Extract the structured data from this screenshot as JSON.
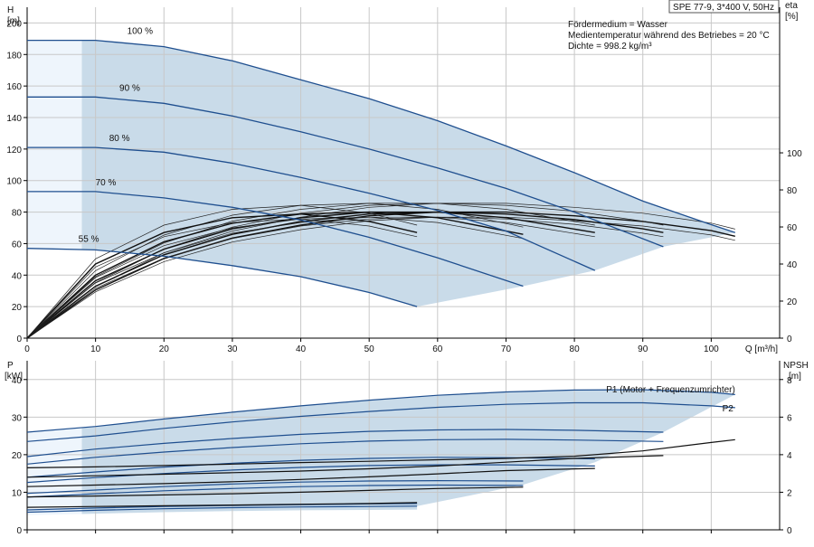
{
  "chart_data": [
    {
      "type": "line",
      "panel": "head-efficiency",
      "title": "SPE 77-9, 3*400 V, 50Hz",
      "info_lines": [
        "Fördermedium = Wasser",
        "Medientemperatur während des Betriebes = 20 °C",
        "Dichte = 998.2 kg/m³"
      ],
      "ylabel": "H",
      "yunit": "[m]",
      "y2label": "eta",
      "y2unit": "[%]",
      "xlabel": "Q [m³/h]",
      "xlim": [
        0,
        110
      ],
      "ylim": [
        0,
        210
      ],
      "y2lim": [
        0,
        100
      ],
      "xticks": [
        "0",
        "10",
        "20",
        "30",
        "40",
        "50",
        "60",
        "70",
        "80",
        "90",
        "100"
      ],
      "yticks": [
        "0",
        "20",
        "40",
        "60",
        "80",
        "100",
        "120",
        "140",
        "160",
        "180",
        "200"
      ],
      "y2ticks": [
        "0",
        "20",
        "40",
        "60",
        "80",
        "100"
      ],
      "grid": true,
      "series": [
        {
          "name": "100 %",
          "x": [
            0,
            10,
            20,
            30,
            40,
            50,
            60,
            70,
            80,
            90,
            100,
            103.5
          ],
          "y": [
            189,
            189,
            185,
            176,
            164,
            152,
            138,
            122,
            105,
            87,
            72,
            67
          ]
        },
        {
          "name": "90 %",
          "x": [
            0,
            10,
            20,
            30,
            40,
            50,
            60,
            70,
            80,
            93
          ],
          "y": [
            153,
            153,
            149,
            141,
            131,
            120,
            108,
            95,
            80,
            58
          ]
        },
        {
          "name": "80 %",
          "x": [
            0,
            10,
            20,
            30,
            40,
            50,
            60,
            70,
            83
          ],
          "y": [
            121,
            121,
            118,
            111,
            102,
            92,
            81,
            68,
            43
          ]
        },
        {
          "name": "70 %",
          "x": [
            0,
            10,
            20,
            30,
            40,
            50,
            60,
            72.5
          ],
          "y": [
            93,
            93,
            89,
            83,
            75,
            64,
            51,
            33
          ]
        },
        {
          "name": "55 %",
          "x": [
            0,
            10,
            20,
            30,
            40,
            50,
            57
          ],
          "y": [
            57,
            56,
            52,
            46,
            39,
            29,
            20
          ]
        }
      ],
      "efficiency_series": [
        {
          "x": [
            0,
            10,
            20,
            30,
            40,
            50,
            60,
            70,
            80,
            90,
            100,
            103.5
          ],
          "y": [
            0,
            26,
            43,
            54,
            61,
            66,
            68,
            68,
            66,
            63,
            58,
            55
          ]
        },
        {
          "x": [
            0,
            10,
            20,
            30,
            40,
            50,
            60,
            70,
            80,
            90,
            93
          ],
          "y": [
            0,
            28,
            45,
            56,
            63,
            67,
            68,
            67,
            64,
            59,
            57
          ]
        },
        {
          "x": [
            0,
            10,
            20,
            30,
            40,
            50,
            60,
            70,
            83
          ],
          "y": [
            0,
            31,
            48,
            59,
            65,
            68,
            68,
            65,
            57
          ]
        },
        {
          "x": [
            0,
            10,
            20,
            30,
            40,
            50,
            60,
            72.5
          ],
          "y": [
            0,
            34,
            52,
            62,
            67,
            68,
            65,
            56
          ]
        },
        {
          "x": [
            0,
            10,
            20,
            30,
            40,
            50,
            57
          ],
          "y": [
            0,
            40,
            57,
            65,
            67,
            63,
            57
          ]
        }
      ]
    },
    {
      "type": "line",
      "panel": "power-npsh",
      "ylabel": "P",
      "yunit": "[kW]",
      "y2label": "NPSH",
      "y2unit": "[m]",
      "xlim": [
        0,
        110
      ],
      "ylim": [
        0,
        45
      ],
      "y2lim": [
        0,
        9
      ],
      "yticks": [
        "0",
        "10",
        "20",
        "30",
        "40"
      ],
      "y2ticks": [
        "0",
        "2",
        "4",
        "6",
        "8"
      ],
      "grid": true,
      "series": [
        {
          "name": "P1 (Motor + Frequenzumrichter)",
          "x": [
            0,
            10,
            20,
            30,
            40,
            50,
            60,
            70,
            80,
            90,
            100,
            103.5
          ],
          "y": [
            26,
            27.5,
            29.5,
            31.3,
            33,
            34.5,
            35.8,
            36.7,
            37.2,
            37.3,
            36.6,
            36
          ]
        },
        {
          "name": "P2",
          "x": [
            0,
            10,
            20,
            30,
            40,
            50,
            60,
            70,
            80,
            90,
            100,
            103.5
          ],
          "y": [
            23.5,
            25,
            27,
            28.7,
            30.2,
            31.5,
            32.6,
            33.4,
            33.8,
            33.8,
            33,
            32.5
          ]
        },
        {
          "name": "",
          "x": [
            0,
            10,
            20,
            30,
            40,
            50,
            60,
            70,
            80,
            93
          ],
          "y": [
            19.5,
            21.5,
            23,
            24.3,
            25.4,
            26.2,
            26.6,
            26.7,
            26.5,
            26
          ]
        },
        {
          "name": "",
          "x": [
            0,
            10,
            20,
            30,
            40,
            50,
            60,
            70,
            80,
            93
          ],
          "y": [
            17.5,
            19.3,
            20.7,
            21.9,
            22.9,
            23.6,
            24,
            24.1,
            23.9,
            23.5
          ]
        },
        {
          "name": "",
          "x": [
            0,
            10,
            20,
            30,
            40,
            50,
            60,
            70,
            83
          ],
          "y": [
            14,
            15.4,
            16.7,
            17.7,
            18.5,
            19,
            19.3,
            19.2,
            18.9
          ]
        },
        {
          "name": "",
          "x": [
            0,
            10,
            20,
            30,
            40,
            50,
            60,
            70,
            83
          ],
          "y": [
            12.6,
            13.9,
            15,
            15.9,
            16.6,
            17.1,
            17.3,
            17.3,
            17
          ]
        },
        {
          "name": "",
          "x": [
            0,
            10,
            20,
            30,
            40,
            50,
            60,
            72.5
          ],
          "y": [
            9.7,
            10.6,
            11.5,
            12.2,
            12.7,
            13,
            13.1,
            13
          ]
        },
        {
          "name": "",
          "x": [
            0,
            10,
            20,
            30,
            40,
            50,
            60,
            72.5
          ],
          "y": [
            8.7,
            9.6,
            10.4,
            11,
            11.5,
            11.8,
            11.9,
            11.8
          ]
        },
        {
          "name": "",
          "x": [
            0,
            10,
            20,
            30,
            40,
            50,
            57
          ],
          "y": [
            5.3,
            5.8,
            6.2,
            6.5,
            6.7,
            6.9,
            7
          ]
        },
        {
          "name": "",
          "x": [
            0,
            10,
            20,
            30,
            40,
            50,
            57
          ],
          "y": [
            4.7,
            5.2,
            5.6,
            5.9,
            6.1,
            6.2,
            6.3
          ]
        }
      ],
      "npsh_series": [
        {
          "x": [
            0,
            10,
            20,
            30,
            40,
            50,
            60,
            70,
            80,
            90,
            100,
            103.5
          ],
          "y": [
            3.3,
            3.35,
            3.42,
            3.5,
            3.58,
            3.65,
            3.73,
            3.8,
            3.92,
            4.2,
            4.65,
            4.8
          ]
        },
        {
          "x": [
            0,
            10,
            20,
            30,
            40,
            50,
            60,
            70,
            80,
            93
          ],
          "y": [
            2.8,
            2.88,
            2.96,
            3.04,
            3.13,
            3.25,
            3.4,
            3.6,
            3.8,
            3.95
          ]
        },
        {
          "x": [
            0,
            10,
            20,
            30,
            40,
            50,
            60,
            70,
            83
          ],
          "y": [
            2.3,
            2.38,
            2.46,
            2.56,
            2.68,
            2.82,
            2.98,
            3.15,
            3.27
          ]
        },
        {
          "x": [
            0,
            10,
            20,
            30,
            40,
            50,
            60,
            72.5
          ],
          "y": [
            1.75,
            1.8,
            1.86,
            1.92,
            2,
            2.1,
            2.2,
            2.27
          ]
        },
        {
          "x": [
            0,
            10,
            20,
            30,
            40,
            50,
            57
          ],
          "y": [
            1.2,
            1.24,
            1.28,
            1.32,
            1.36,
            1.4,
            1.45
          ]
        }
      ]
    }
  ]
}
